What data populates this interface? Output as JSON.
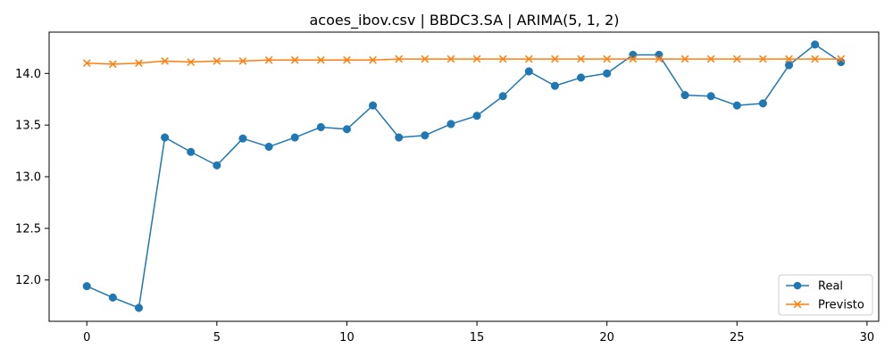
{
  "chart_data": {
    "type": "line",
    "title": "acoes_ibov.csv | BBDC3.SA | ARIMA(5, 1, 2)",
    "xlabel": "",
    "ylabel": "",
    "xlim": [
      -1.45,
      30.45
    ],
    "ylim": [
      11.6,
      14.4
    ],
    "xticks": [
      0,
      5,
      10,
      15,
      20,
      25,
      30
    ],
    "yticks": [
      12.0,
      12.5,
      13.0,
      13.5,
      14.0
    ],
    "xtick_labels": [
      "0",
      "5",
      "10",
      "15",
      "20",
      "25",
      "30"
    ],
    "ytick_labels": [
      "12.0",
      "12.5",
      "13.0",
      "13.5",
      "14.0"
    ],
    "legend_position": "bottom-right",
    "grid": false,
    "x": [
      0,
      1,
      2,
      3,
      4,
      5,
      6,
      7,
      8,
      9,
      10,
      11,
      12,
      13,
      14,
      15,
      16,
      17,
      18,
      19,
      20,
      21,
      22,
      23,
      24,
      25,
      26,
      27,
      28,
      29
    ],
    "series": [
      {
        "name": "Real",
        "color": "#1f77b4",
        "marker": "circle",
        "values": [
          11.94,
          11.83,
          11.73,
          13.38,
          13.24,
          13.11,
          13.37,
          13.29,
          13.38,
          13.48,
          13.46,
          13.69,
          13.38,
          13.4,
          13.51,
          13.59,
          13.78,
          14.02,
          13.88,
          13.96,
          14.0,
          14.18,
          14.18,
          13.79,
          13.78,
          13.69,
          13.71,
          14.08,
          14.28,
          14.11
        ]
      },
      {
        "name": "Previsto",
        "color": "#ff7f0e",
        "marker": "x",
        "values": [
          14.1,
          14.09,
          14.1,
          14.12,
          14.11,
          14.12,
          14.12,
          14.13,
          14.13,
          14.13,
          14.13,
          14.13,
          14.14,
          14.14,
          14.14,
          14.14,
          14.14,
          14.14,
          14.14,
          14.14,
          14.14,
          14.14,
          14.14,
          14.14,
          14.14,
          14.14,
          14.14,
          14.14,
          14.14,
          14.14
        ]
      }
    ]
  }
}
